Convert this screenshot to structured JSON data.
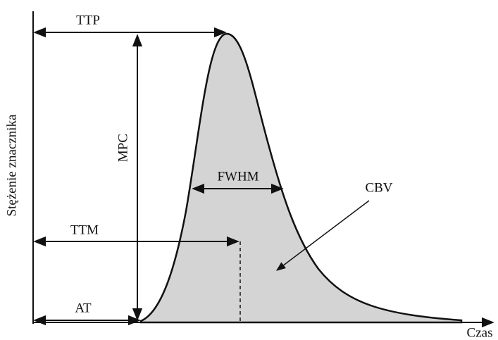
{
  "labels": {
    "ttp": "TTP",
    "mpc": "MPC",
    "fwhm": "FWHM",
    "cbv": "CBV",
    "ttm": "TTM",
    "at": "AT"
  },
  "axes": {
    "y_label": "Stężenie znacznika",
    "x_label": "Czas"
  }
}
